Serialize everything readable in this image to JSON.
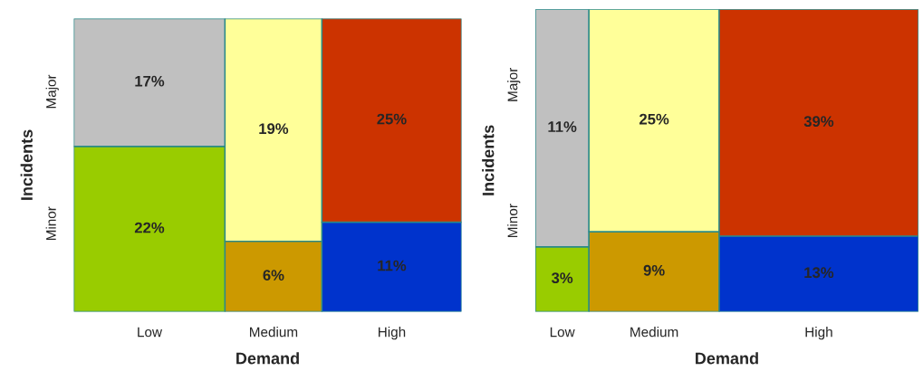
{
  "chart_data": [
    {
      "type": "other",
      "xlabel": "Demand",
      "ylabel": "Incidents",
      "categories": [
        "Low",
        "Medium",
        "High"
      ],
      "series": [
        {
          "name": "Minor",
          "colors": [
            "#99cc00",
            "#cc9900",
            "#0033cc"
          ],
          "values": [
            22,
            6,
            11
          ],
          "value_labels": [
            "22%",
            "6%",
            "11%"
          ]
        },
        {
          "name": "Major",
          "colors": [
            "#c0c0c0",
            "#ffff99",
            "#cc3300"
          ],
          "values": [
            17,
            19,
            25
          ],
          "value_labels": [
            "17%",
            "19%",
            "25%"
          ]
        }
      ]
    },
    {
      "type": "other",
      "xlabel": "Demand",
      "ylabel": "Incidents",
      "categories": [
        "Low",
        "Medium",
        "High"
      ],
      "series": [
        {
          "name": "Minor",
          "colors": [
            "#99cc00",
            "#cc9900",
            "#0033cc"
          ],
          "values": [
            3,
            9,
            13
          ],
          "value_labels": [
            "3%",
            "9%",
            "13%"
          ]
        },
        {
          "name": "Major",
          "colors": [
            "#c0c0c0",
            "#ffff99",
            "#cc3300"
          ],
          "values": [
            11,
            25,
            39
          ],
          "value_labels": [
            "11%",
            "25%",
            "39%"
          ]
        }
      ]
    }
  ]
}
